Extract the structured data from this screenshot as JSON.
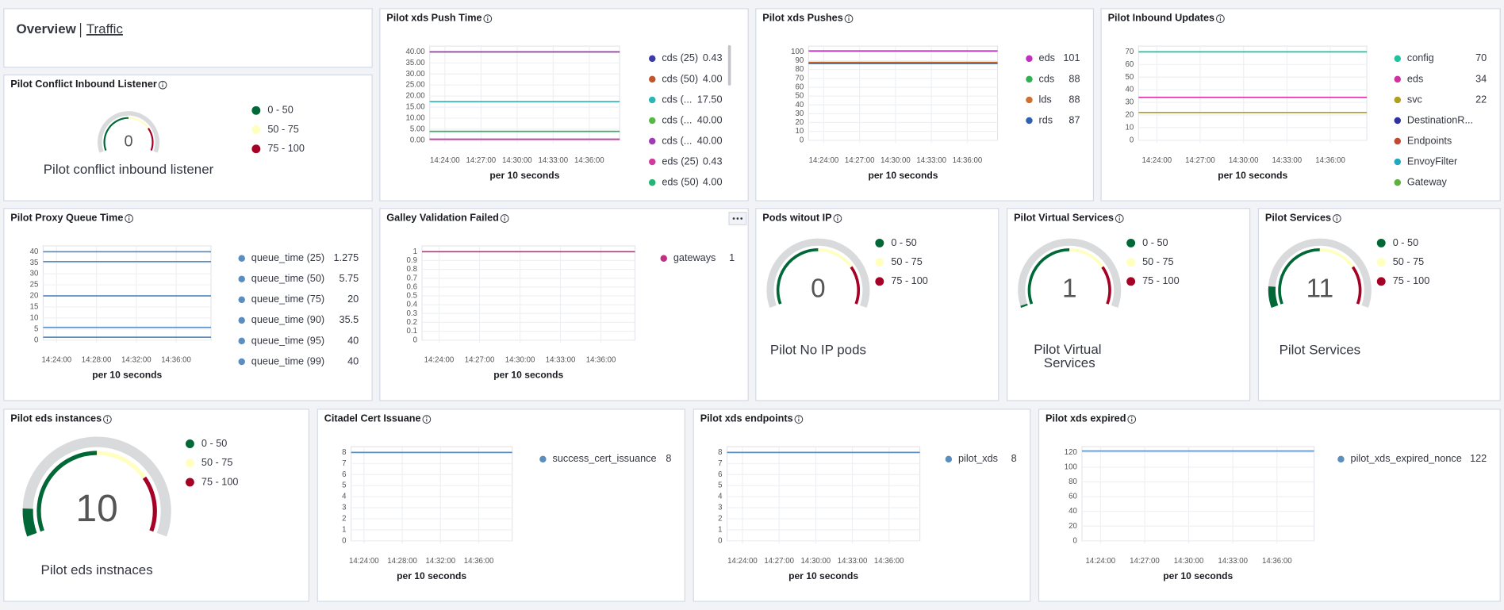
{
  "header": {
    "title": "Overview",
    "link": "Traffic"
  },
  "panels": [
    {
      "title": "Pilot Conflict Inbound Listener",
      "type": "gauge",
      "value": 0,
      "label": "Pilot conflict inbound listener",
      "range": [
        0,
        100
      ],
      "bands": [
        {
          "label": "0 - 50",
          "color": "#006837",
          "from": 0,
          "to": 50
        },
        {
          "label": "50 - 75",
          "color": "#ffffbf",
          "from": 50,
          "to": 75
        },
        {
          "label": "75 - 100",
          "color": "#a50026",
          "from": 75,
          "to": 100
        }
      ]
    },
    {
      "title": "Pilot xds Push Time",
      "type": "line",
      "xlabel": "per 10 seconds",
      "xticks": [
        "14:24:00",
        "14:27:00",
        "14:30:00",
        "14:33:00",
        "14:36:00"
      ],
      "ylim": [
        0,
        40
      ],
      "yticks": [
        {
          "value": 0,
          "label": "0.00"
        },
        {
          "value": 5,
          "label": "5.00"
        },
        {
          "value": 10,
          "label": "10.00"
        },
        {
          "value": 15,
          "label": "15.00"
        },
        {
          "value": 20,
          "label": "20.00"
        },
        {
          "value": 25,
          "label": "25.00"
        },
        {
          "value": 30,
          "label": "30.00"
        },
        {
          "value": 35,
          "label": "35.00"
        },
        {
          "value": 40,
          "label": "40.00"
        }
      ],
      "series": [
        {
          "name": "cds (25)",
          "color": "#3b3ba8",
          "value": 0.43,
          "value_label": "0.43"
        },
        {
          "name": "cds (50)",
          "color": "#c0562c",
          "value": 4,
          "value_label": "4.00"
        },
        {
          "name": "cds (...",
          "color": "#2bb5b5",
          "value": 17.5,
          "value_label": "17.50"
        },
        {
          "name": "cds (...",
          "color": "#57b845",
          "value": 40,
          "value_label": "40.00"
        },
        {
          "name": "cds (...",
          "color": "#a33ab5",
          "value": 40,
          "value_label": "40.00"
        },
        {
          "name": "eds (25)",
          "color": "#d03a9e",
          "value": 0.43,
          "value_label": "0.43"
        },
        {
          "name": "eds (50)",
          "color": "#22b573",
          "value": 4,
          "value_label": "4.00"
        }
      ]
    },
    {
      "title": "Pilot xds Pushes",
      "type": "line",
      "xlabel": "per 10 seconds",
      "xticks": [
        "14:24:00",
        "14:27:00",
        "14:30:00",
        "14:33:00",
        "14:36:00"
      ],
      "ylim": [
        0,
        100
      ],
      "yticks": [
        0,
        10,
        20,
        30,
        40,
        50,
        60,
        70,
        80,
        90,
        100
      ],
      "series": [
        {
          "name": "eds",
          "color": "#c030c0",
          "value": 101
        },
        {
          "name": "cds",
          "color": "#30b050",
          "value": 88
        },
        {
          "name": "lds",
          "color": "#d07030",
          "value": 88
        },
        {
          "name": "rds",
          "color": "#3060b0",
          "value": 87
        }
      ]
    },
    {
      "title": "Pilot Inbound Updates",
      "type": "line",
      "xlabel": "per 10 seconds",
      "xticks": [
        "14:24:00",
        "14:27:00",
        "14:30:00",
        "14:33:00",
        "14:36:00"
      ],
      "ylim": [
        0,
        70
      ],
      "yticks": [
        0,
        10,
        20,
        30,
        40,
        50,
        60,
        70
      ],
      "series": [
        {
          "name": "config",
          "color": "#20c0a0",
          "value": 70
        },
        {
          "name": "eds",
          "color": "#d030a0",
          "value": 34
        },
        {
          "name": "svc",
          "color": "#b0a020",
          "value": 22
        },
        {
          "name": "DestinationR...",
          "color": "#3030a0",
          "value": null
        },
        {
          "name": "Endpoints",
          "color": "#c04a30",
          "value": null
        },
        {
          "name": "EnvoyFilter",
          "color": "#20a8c0",
          "value": null
        },
        {
          "name": "Gateway",
          "color": "#60b040",
          "value": null
        }
      ]
    },
    {
      "title": "Pilot Proxy Queue Time",
      "type": "line",
      "xlabel": "per 10 seconds",
      "xticks": [
        "14:24:00",
        "14:28:00",
        "14:32:00",
        "14:36:00"
      ],
      "ylim": [
        0,
        40
      ],
      "yticks": [
        0,
        5,
        10,
        15,
        20,
        25,
        30,
        35,
        40
      ],
      "series": [
        {
          "name": "queue_time (25)",
          "color": "#5b8ec0",
          "value": 1.275
        },
        {
          "name": "queue_time (50)",
          "color": "#5b8ec0",
          "value": 5.75
        },
        {
          "name": "queue_time (75)",
          "color": "#5b8ec0",
          "value": 20
        },
        {
          "name": "queue_time (90)",
          "color": "#5b8ec0",
          "value": 35.5
        },
        {
          "name": "queue_time (95)",
          "color": "#5b8ec0",
          "value": 40
        },
        {
          "name": "queue_time (99)",
          "color": "#5b8ec0",
          "value": 40
        }
      ]
    },
    {
      "title": "Galley Validation Failed",
      "type": "line",
      "xlabel": "per 10 seconds",
      "xticks": [
        "14:24:00",
        "14:27:00",
        "14:30:00",
        "14:33:00",
        "14:36:00"
      ],
      "ylim": [
        0,
        1
      ],
      "yticks": [
        0,
        0.1,
        0.2,
        0.3,
        0.4,
        0.5,
        0.6,
        0.7,
        0.8,
        0.9,
        1
      ],
      "series": [
        {
          "name": "gateways",
          "color": "#c03080",
          "value": 1
        }
      ]
    },
    {
      "title": "Pods witout IP",
      "type": "gauge",
      "value": 0,
      "label": "Pilot No IP pods",
      "range": [
        0,
        100
      ],
      "bands": [
        {
          "label": "0 - 50",
          "color": "#006837",
          "from": 0,
          "to": 50
        },
        {
          "label": "50 - 75",
          "color": "#ffffbf",
          "from": 50,
          "to": 75
        },
        {
          "label": "75 - 100",
          "color": "#a50026",
          "from": 75,
          "to": 100
        }
      ]
    },
    {
      "title": "Pilot Virtual Services",
      "type": "gauge",
      "value": 1,
      "label": "Pilot Virtual Services",
      "range": [
        0,
        100
      ],
      "bands": [
        {
          "label": "0 - 50",
          "color": "#006837",
          "from": 0,
          "to": 50
        },
        {
          "label": "50 - 75",
          "color": "#ffffbf",
          "from": 50,
          "to": 75
        },
        {
          "label": "75 - 100",
          "color": "#a50026",
          "from": 75,
          "to": 100
        }
      ]
    },
    {
      "title": "Pilot Services",
      "type": "gauge",
      "value": 11,
      "label": "Pilot Services",
      "range": [
        0,
        100
      ],
      "bands": [
        {
          "label": "0 - 50",
          "color": "#006837",
          "from": 0,
          "to": 50
        },
        {
          "label": "50 - 75",
          "color": "#ffffbf",
          "from": 50,
          "to": 75
        },
        {
          "label": "75 - 100",
          "color": "#a50026",
          "from": 75,
          "to": 100
        }
      ]
    },
    {
      "title": "Pilot eds instances",
      "type": "gauge",
      "value": 10,
      "label": "Pilot eds instnaces",
      "range": [
        0,
        100
      ],
      "bands": [
        {
          "label": "0 - 50",
          "color": "#006837",
          "from": 0,
          "to": 50
        },
        {
          "label": "50 - 75",
          "color": "#ffffbf",
          "from": 50,
          "to": 75
        },
        {
          "label": "75 - 100",
          "color": "#a50026",
          "from": 75,
          "to": 100
        }
      ]
    },
    {
      "title": "Citadel Cert Issuane",
      "type": "line",
      "xlabel": "per 10 seconds",
      "xticks": [
        "14:24:00",
        "14:28:00",
        "14:32:00",
        "14:36:00"
      ],
      "ylim": [
        0,
        8
      ],
      "yticks": [
        0,
        1,
        2,
        3,
        4,
        5,
        6,
        7,
        8
      ],
      "series": [
        {
          "name": "success_cert_issuance",
          "color": "#5b8ec0",
          "value": 8
        }
      ]
    },
    {
      "title": "Pilot xds endpoints",
      "type": "line",
      "xlabel": "per 10 seconds",
      "xticks": [
        "14:24:00",
        "14:27:00",
        "14:30:00",
        "14:33:00",
        "14:36:00"
      ],
      "ylim": [
        0,
        8
      ],
      "yticks": [
        0,
        1,
        2,
        3,
        4,
        5,
        6,
        7,
        8
      ],
      "series": [
        {
          "name": "pilot_xds",
          "color": "#5b8ec0",
          "value": 8
        }
      ]
    },
    {
      "title": "Pilot xds expired",
      "type": "line",
      "xlabel": "per 10 seconds",
      "xticks": [
        "14:24:00",
        "14:27:00",
        "14:30:00",
        "14:33:00",
        "14:36:00"
      ],
      "ylim": [
        0,
        120
      ],
      "yticks": [
        0,
        20,
        40,
        60,
        80,
        100,
        120
      ],
      "series": [
        {
          "name": "pilot_xds_expired_nonce",
          "color": "#5b8ec0",
          "value": 122
        }
      ]
    }
  ]
}
